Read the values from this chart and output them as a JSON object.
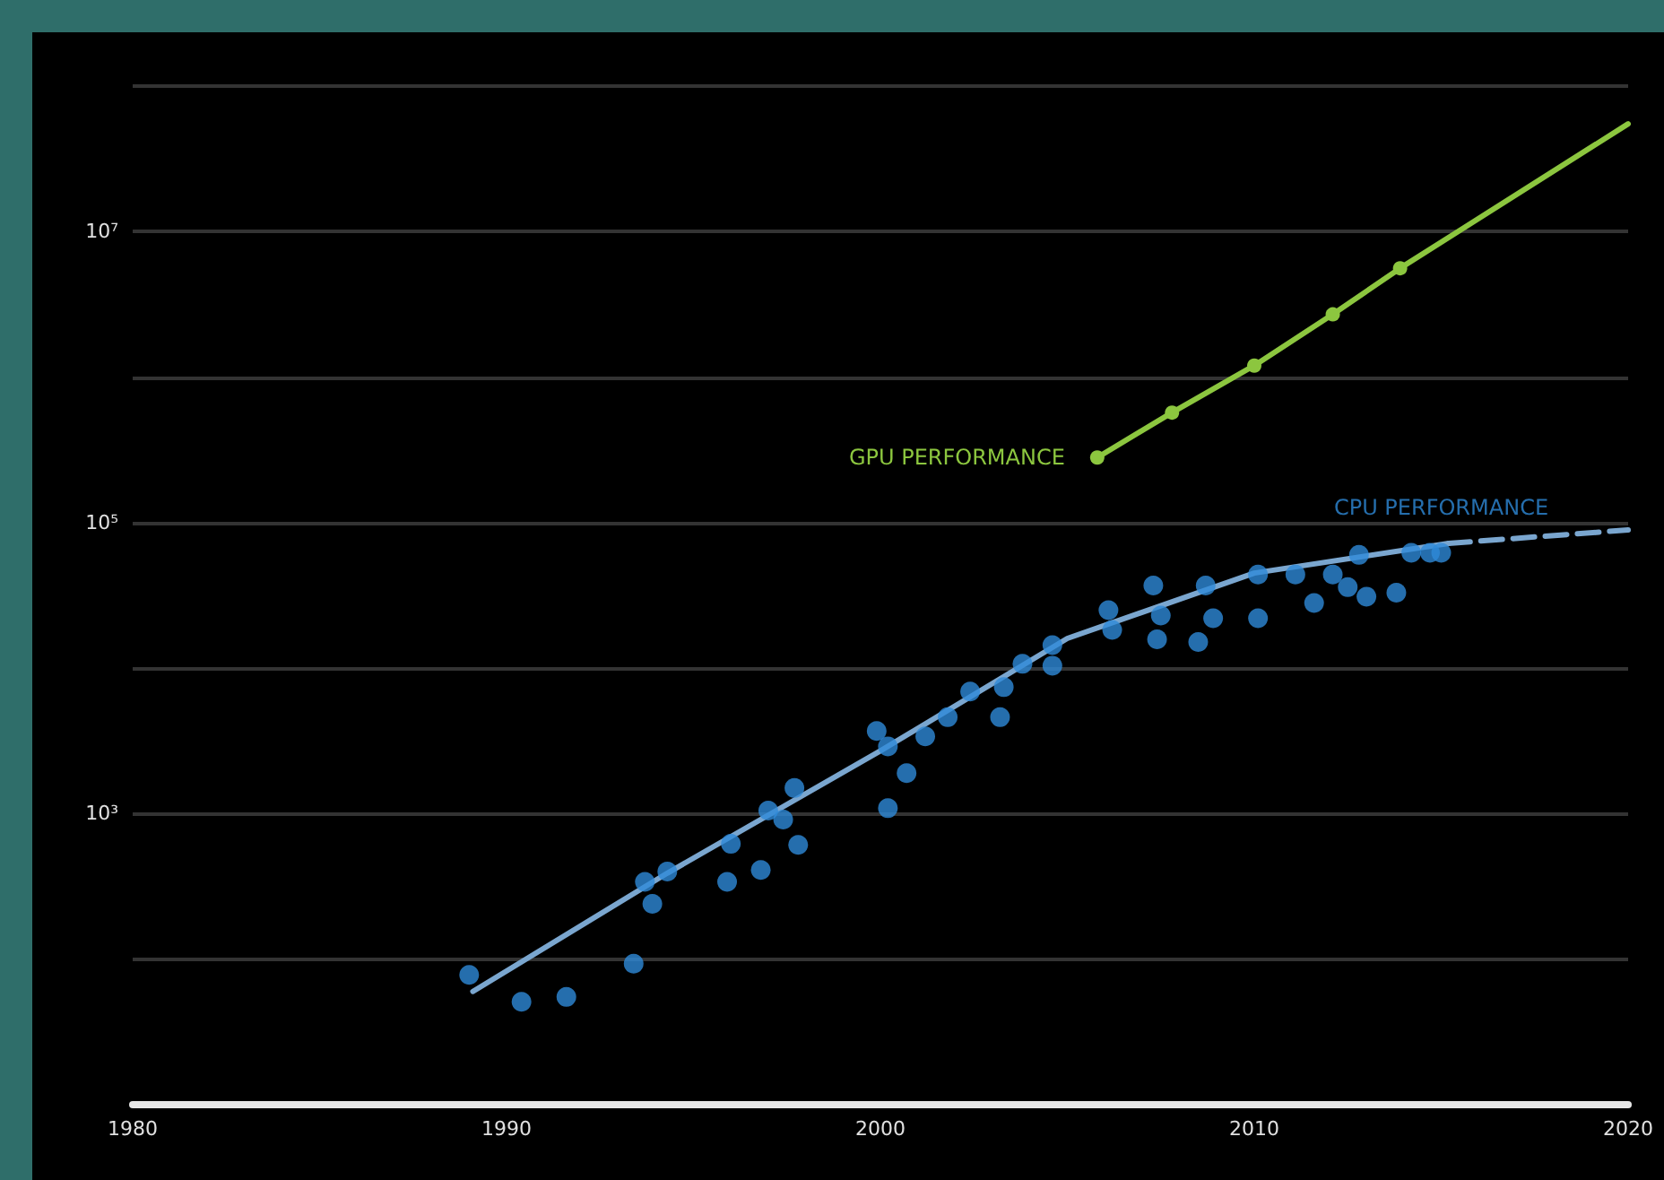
{
  "chart_data": {
    "type": "scatter",
    "log": "y",
    "grid": "y",
    "legend": false,
    "xlim": [
      1980,
      2020
    ],
    "xticks": [
      1980,
      1990,
      2000,
      2010,
      2020
    ],
    "ylim": [
      10,
      100000000
    ],
    "yticks": [
      {
        "value": 100,
        "label": null
      },
      {
        "value": 1000,
        "label": "10³"
      },
      {
        "value": 10000,
        "label": null
      },
      {
        "value": 100000,
        "label": "10⁵"
      },
      {
        "value": 1000000,
        "label": null
      },
      {
        "value": 10000000,
        "label": "10⁷"
      },
      {
        "value": 100000000,
        "label": null
      }
    ],
    "series": [
      {
        "name": "GPU PERFORMANCE",
        "type": "line",
        "color": "#8cc63f",
        "marker": "circle",
        "line_style": "solid",
        "x": [
          2005.8,
          2007.8,
          2010.0,
          2012.1,
          2013.9
        ],
        "values": [
          280000,
          570000,
          1200000,
          2700000,
          5600000
        ]
      },
      {
        "type": "line",
        "color": "#8cc63f",
        "marker": "none",
        "line_style": "solid",
        "x": [
          2013.9,
          2020
        ],
        "values": [
          5600000,
          55000000
        ]
      },
      {
        "type": "line",
        "color": "#7aa6cf",
        "marker": "none",
        "line_style": "solid",
        "x": [
          1989.1,
          1994.3,
          2000,
          2005,
          2010,
          2015.2
        ],
        "values": [
          60,
          390,
          2700,
          16000,
          45000,
          72000
        ]
      },
      {
        "type": "line",
        "color": "#7aa6cf",
        "marker": "none",
        "line_style": "dashed",
        "x": [
          2015.2,
          2020
        ],
        "values": [
          72000,
          89000
        ]
      },
      {
        "name": "CPU PERFORMANCE",
        "type": "scatter",
        "color": "#2e8ad8",
        "marker": "circle",
        "x": [
          1989.0,
          1990.4,
          1991.6,
          1993.4,
          1993.7,
          1993.9,
          1994.3,
          1995.9,
          1996.0,
          1996.8,
          1997.0,
          1997.4,
          1997.8,
          1997.7,
          1999.9,
          2000.2,
          2000.7,
          2000.2,
          2001.2,
          2001.8,
          2002.4,
          2003.2,
          2003.3,
          2003.8,
          2004.6,
          2004.6,
          2006.1,
          2006.2,
          2007.3,
          2007.4,
          2007.5,
          2008.5,
          2008.7,
          2008.9,
          2010.1,
          2010.1,
          2011.1,
          2011.6,
          2012.1,
          2012.5,
          2012.8,
          2013.0,
          2013.8,
          2014.2,
          2014.7,
          2015.0
        ],
        "values": [
          78,
          51,
          55,
          93,
          340,
          240,
          400,
          340,
          620,
          410,
          1050,
          910,
          610,
          1500,
          3700,
          2900,
          1900,
          1090,
          3400,
          4600,
          6900,
          4600,
          7400,
          10700,
          14400,
          10400,
          25000,
          18300,
          37000,
          15800,
          23000,
          15100,
          37000,
          22000,
          22000,
          44000,
          44000,
          28000,
          44000,
          36000,
          60000,
          31000,
          33000,
          62000,
          62000,
          62000
        ]
      }
    ]
  }
}
